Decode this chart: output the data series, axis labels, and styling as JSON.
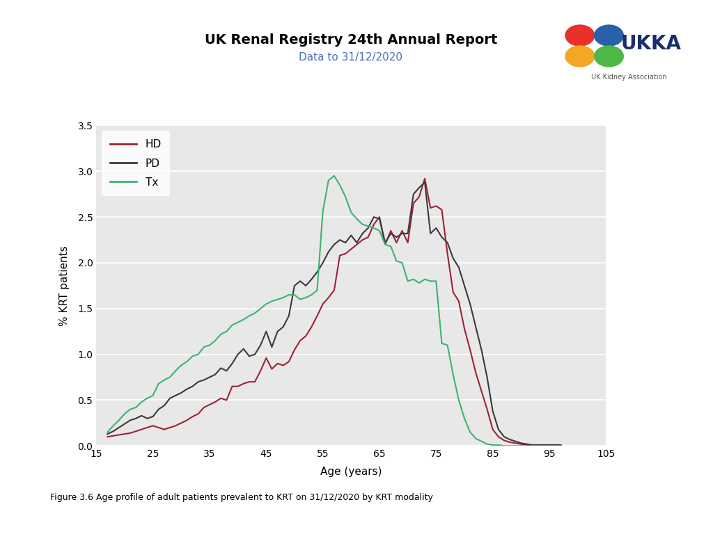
{
  "title": "UK Renal Registry 24th Annual Report",
  "subtitle": "Data to 31/12/2020",
  "xlabel": "Age (years)",
  "ylabel": "% KRT patients",
  "caption": "Figure 3.6 Age profile of adult patients prevalent to KRT on 31/12/2020 by KRT modality",
  "xlim": [
    15,
    105
  ],
  "ylim": [
    0.0,
    3.5
  ],
  "xticks": [
    15,
    25,
    35,
    45,
    55,
    65,
    75,
    85,
    95,
    105
  ],
  "yticks": [
    0.0,
    0.5,
    1.0,
    1.5,
    2.0,
    2.5,
    3.0,
    3.5
  ],
  "hd_color": "#9b2335",
  "pd_color": "#3a3a3a",
  "tx_color": "#3cb371",
  "background_color": "#e8e8e8",
  "hd_x": [
    17,
    18,
    19,
    20,
    21,
    22,
    23,
    24,
    25,
    26,
    27,
    28,
    29,
    30,
    31,
    32,
    33,
    34,
    35,
    36,
    37,
    38,
    39,
    40,
    41,
    42,
    43,
    44,
    45,
    46,
    47,
    48,
    49,
    50,
    51,
    52,
    53,
    54,
    55,
    56,
    57,
    58,
    59,
    60,
    61,
    62,
    63,
    64,
    65,
    66,
    67,
    68,
    69,
    70,
    71,
    72,
    73,
    74,
    75,
    76,
    77,
    78,
    79,
    80,
    81,
    82,
    83,
    84,
    85,
    86,
    87,
    88,
    89,
    90,
    91,
    92,
    93,
    94,
    95,
    96,
    97
  ],
  "hd_y": [
    0.1,
    0.11,
    0.12,
    0.13,
    0.14,
    0.16,
    0.18,
    0.2,
    0.22,
    0.2,
    0.18,
    0.2,
    0.22,
    0.25,
    0.28,
    0.32,
    0.35,
    0.42,
    0.45,
    0.48,
    0.52,
    0.5,
    0.65,
    0.65,
    0.68,
    0.7,
    0.7,
    0.82,
    0.96,
    0.84,
    0.9,
    0.88,
    0.92,
    1.05,
    1.15,
    1.2,
    1.3,
    1.42,
    1.55,
    1.62,
    1.7,
    2.08,
    2.1,
    2.15,
    2.2,
    2.25,
    2.28,
    2.42,
    2.5,
    2.2,
    2.35,
    2.22,
    2.35,
    2.22,
    2.65,
    2.72,
    2.92,
    2.6,
    2.62,
    2.58,
    2.1,
    1.68,
    1.58,
    1.28,
    1.05,
    0.8,
    0.6,
    0.4,
    0.18,
    0.1,
    0.06,
    0.04,
    0.03,
    0.02,
    0.01,
    0.01,
    0.01,
    0.01,
    0.01,
    0.01,
    0.01
  ],
  "pd_x": [
    17,
    18,
    19,
    20,
    21,
    22,
    23,
    24,
    25,
    26,
    27,
    28,
    29,
    30,
    31,
    32,
    33,
    34,
    35,
    36,
    37,
    38,
    39,
    40,
    41,
    42,
    43,
    44,
    45,
    46,
    47,
    48,
    49,
    50,
    51,
    52,
    53,
    54,
    55,
    56,
    57,
    58,
    59,
    60,
    61,
    62,
    63,
    64,
    65,
    66,
    67,
    68,
    69,
    70,
    71,
    72,
    73,
    74,
    75,
    76,
    77,
    78,
    79,
    80,
    81,
    82,
    83,
    84,
    85,
    86,
    87,
    88,
    89,
    90,
    91,
    92,
    93,
    94,
    95,
    96,
    97
  ],
  "pd_y": [
    0.13,
    0.16,
    0.2,
    0.24,
    0.28,
    0.3,
    0.33,
    0.3,
    0.32,
    0.4,
    0.44,
    0.52,
    0.55,
    0.58,
    0.62,
    0.65,
    0.7,
    0.72,
    0.75,
    0.78,
    0.85,
    0.82,
    0.9,
    1.0,
    1.06,
    0.98,
    1.0,
    1.1,
    1.25,
    1.08,
    1.25,
    1.3,
    1.42,
    1.75,
    1.8,
    1.75,
    1.82,
    1.9,
    2.0,
    2.12,
    2.2,
    2.25,
    2.22,
    2.3,
    2.22,
    2.32,
    2.38,
    2.5,
    2.48,
    2.22,
    2.32,
    2.28,
    2.32,
    2.32,
    2.75,
    2.82,
    2.88,
    2.32,
    2.38,
    2.28,
    2.22,
    2.05,
    1.95,
    1.75,
    1.55,
    1.3,
    1.05,
    0.75,
    0.38,
    0.18,
    0.1,
    0.07,
    0.05,
    0.03,
    0.02,
    0.01,
    0.01,
    0.01,
    0.01,
    0.01,
    0.01
  ],
  "tx_x": [
    17,
    18,
    19,
    20,
    21,
    22,
    23,
    24,
    25,
    26,
    27,
    28,
    29,
    30,
    31,
    32,
    33,
    34,
    35,
    36,
    37,
    38,
    39,
    40,
    41,
    42,
    43,
    44,
    45,
    46,
    47,
    48,
    49,
    50,
    51,
    52,
    53,
    54,
    55,
    56,
    57,
    58,
    59,
    60,
    61,
    62,
    63,
    64,
    65,
    66,
    67,
    68,
    69,
    70,
    71,
    72,
    73,
    74,
    75,
    76,
    77,
    78,
    79,
    80,
    81,
    82,
    83,
    84,
    85,
    86,
    87,
    88,
    89,
    90,
    91,
    92,
    93,
    94,
    95,
    96,
    97
  ],
  "tx_y": [
    0.15,
    0.22,
    0.28,
    0.35,
    0.4,
    0.42,
    0.48,
    0.52,
    0.55,
    0.68,
    0.72,
    0.75,
    0.82,
    0.88,
    0.92,
    0.98,
    1.0,
    1.08,
    1.1,
    1.15,
    1.22,
    1.25,
    1.32,
    1.35,
    1.38,
    1.42,
    1.45,
    1.5,
    1.55,
    1.58,
    1.6,
    1.62,
    1.65,
    1.65,
    1.6,
    1.62,
    1.65,
    1.7,
    2.56,
    2.9,
    2.95,
    2.85,
    2.72,
    2.55,
    2.48,
    2.42,
    2.4,
    2.38,
    2.35,
    2.2,
    2.18,
    2.02,
    2.0,
    1.8,
    1.82,
    1.78,
    1.82,
    1.8,
    1.8,
    1.12,
    1.1,
    0.78,
    0.5,
    0.3,
    0.15,
    0.08,
    0.05,
    0.02,
    0.01,
    0.01,
    0.0,
    0.0,
    0.0,
    0.0,
    0.0,
    0.0,
    0.0,
    0.0,
    0.0,
    0.0,
    0.0
  ]
}
